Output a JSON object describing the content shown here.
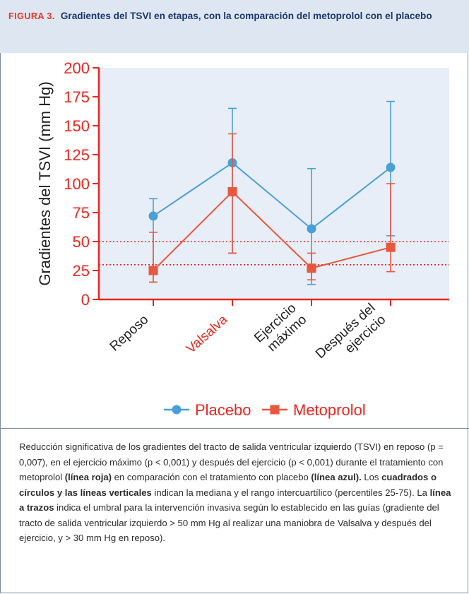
{
  "figure": {
    "label": "FIGURA 3.",
    "title": "Gradientes del TSVI en etapas, con la comparación del metoprolol con el placebo"
  },
  "colors": {
    "placebo": "#4a9fd6",
    "metoprolol": "#e9573f",
    "axis": "#e8261e",
    "threshold": "#e8261e",
    "plot_bg": "#e8eef7"
  },
  "chart_data": {
    "type": "line",
    "ylabel": "Gradientes del TSVI (mm Hg)",
    "xlabel": "",
    "ylim": [
      0,
      200
    ],
    "yticks": [
      0,
      25,
      50,
      75,
      100,
      125,
      150,
      175,
      200
    ],
    "categories": [
      "Reposo",
      "Valsalva",
      "Ejercicio\nmáximo",
      "Después del\nejercicio"
    ],
    "highlighted_category": "Valsalva",
    "thresholds": [
      50,
      30
    ],
    "grid": false,
    "legend_position": "bottom",
    "series": [
      {
        "name": "Placebo",
        "marker": "circle",
        "values": [
          72,
          118,
          61,
          114
        ],
        "lower": [
          15,
          40,
          13,
          55
        ],
        "upper": [
          87,
          165,
          113,
          171
        ]
      },
      {
        "name": "Metoprolol",
        "marker": "square",
        "values": [
          25,
          93,
          27,
          45
        ],
        "lower": [
          15,
          40,
          17,
          24
        ],
        "upper": [
          58,
          143,
          40,
          100
        ]
      }
    ]
  },
  "caption": {
    "p1": "Reducción significativa de los gradientes del tracto de salida ventricular izquierdo (TSVI) en reposo (p = 0,007), en el ejercicio máximo (p < 0,001) y después del ejercicio (p < 0,001) durante el tratamiento con metoprolol ",
    "b1": "(línea roja)",
    "p2": " en comparación con el tratamiento con placebo ",
    "b2": "(línea azul).",
    "p3": " Los ",
    "b3": "cuadrados o círculos y las líneas verticales",
    "p4": " indican la mediana y el rango intercuartílico (percentiles 25-75). La ",
    "b4": "línea a trazos",
    "p5": " indica el umbral para la intervención invasiva según lo establecido en las guías (gradiente del tracto de salida ventricular izquierdo > 50 mm Hg al realizar una maniobra de Valsalva y después del ejercicio, y > 30 mm Hg en reposo)."
  }
}
